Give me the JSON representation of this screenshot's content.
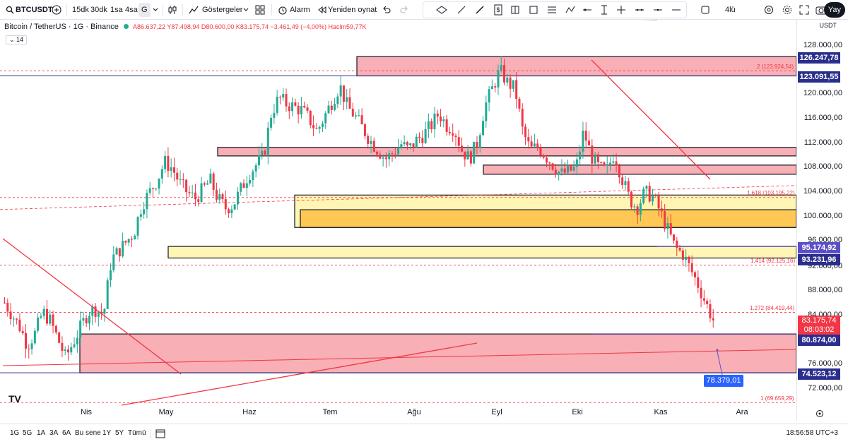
{
  "toolbar": {
    "symbol": "BTCUSDT",
    "intervals": [
      "15dk",
      "30dk",
      "1sa",
      "4sa",
      "G"
    ],
    "indicators_label": "Göstergeler",
    "alert_label": "Alarm",
    "replay_label": "Yeniden oynat",
    "layout_label": "4lü",
    "share_label": "Yay"
  },
  "legend": {
    "title": "Bitcoin / TetherUS · 1G · Binance",
    "ohlc": "A86.637,22 Y87.498,94 D80.600,00 K83.175,74 −3.461,49 (−4,00%) Hacim59,77K",
    "indicator_count": "14"
  },
  "price_axis": {
    "currency": "USDT",
    "ticks": [
      "128.000,00",
      "124.000,00",
      "120.000,00",
      "116.000,00",
      "112.000,00",
      "108.000,00",
      "104.000,00",
      "100.000,00",
      "96.000,00",
      "92.000,00",
      "88.000,00",
      "84.000,00",
      "76.000,00",
      "72.000,00"
    ],
    "labels": {
      "l1": "126.247,78",
      "l2": "123.091,55",
      "l3": "95.174,92",
      "l4": "93.231,96",
      "l5": "80.874,00",
      "l6": "74.523,12"
    },
    "current_price": "83.175,74",
    "countdown": "08:03:02"
  },
  "fib_labels": {
    "f1": "2 (123.924,54)",
    "f2": "1.618 (103.195,22)",
    "f3": "1.414 (92.125,16)",
    "f4": "1.272 (84.419,44)",
    "f5": "1 (69.659,29)"
  },
  "measure_label": "78.379,01",
  "time_axis": {
    "months": [
      "Nis",
      "May",
      "Haz",
      "Tem",
      "Ağu",
      "Eyl",
      "Eki",
      "Kas",
      "Ara"
    ]
  },
  "bottom_bar": {
    "ranges": [
      "1G",
      "5G",
      "1A",
      "3A",
      "6A",
      "Bu sene",
      "1Y",
      "5Y",
      "Tümü"
    ],
    "clock": "18:56:58 UTC+3"
  },
  "colors": {
    "up": "#22ab94",
    "down": "#f23645",
    "zone_red": "#f7a1a8",
    "zone_yellow": "#fff3a8",
    "zone_orange": "#ffc043",
    "label_blue": "#2a2e8c"
  },
  "chart_data": {
    "type": "candlestick",
    "series_points": [
      [
        0,
        86000
      ],
      [
        5,
        84000
      ],
      [
        10,
        82000
      ],
      [
        15,
        79000
      ],
      [
        20,
        81000
      ],
      [
        25,
        84500
      ],
      [
        30,
        83000
      ],
      [
        35,
        80000
      ],
      [
        40,
        77000
      ],
      [
        45,
        79500
      ],
      [
        50,
        82000
      ],
      [
        55,
        84500
      ],
      [
        60,
        85000
      ],
      [
        65,
        84000
      ],
      [
        70,
        93000
      ],
      [
        75,
        94500
      ],
      [
        80,
        96000
      ],
      [
        85,
        97500
      ],
      [
        90,
        102000
      ],
      [
        95,
        104000
      ],
      [
        100,
        106000
      ],
      [
        105,
        109000
      ],
      [
        110,
        108000
      ],
      [
        115,
        105500
      ],
      [
        120,
        104000
      ],
      [
        125,
        103000
      ],
      [
        130,
        104500
      ],
      [
        135,
        106000
      ],
      [
        140,
        103000
      ],
      [
        145,
        101500
      ],
      [
        150,
        102000
      ],
      [
        155,
        104500
      ],
      [
        160,
        107000
      ],
      [
        165,
        108500
      ],
      [
        170,
        110000
      ],
      [
        175,
        117000
      ],
      [
        180,
        119500
      ],
      [
        185,
        118500
      ],
      [
        190,
        118000
      ],
      [
        195,
        117500
      ],
      [
        200,
        116000
      ],
      [
        205,
        114000
      ],
      [
        210,
        116500
      ],
      [
        215,
        119000
      ],
      [
        220,
        121500
      ],
      [
        225,
        118000
      ],
      [
        230,
        116500
      ],
      [
        235,
        114500
      ],
      [
        240,
        112500
      ],
      [
        245,
        111000
      ],
      [
        250,
        109500
      ],
      [
        255,
        110500
      ],
      [
        260,
        112000
      ],
      [
        265,
        111000
      ],
      [
        270,
        112500
      ],
      [
        275,
        113500
      ],
      [
        280,
        115000
      ],
      [
        285,
        117000
      ],
      [
        290,
        115000
      ],
      [
        295,
        114500
      ],
      [
        300,
        111000
      ],
      [
        305,
        109500
      ],
      [
        310,
        112000
      ],
      [
        315,
        118000
      ],
      [
        320,
        121000
      ],
      [
        325,
        124000
      ],
      [
        330,
        122000
      ],
      [
        335,
        121000
      ],
      [
        340,
        114000
      ],
      [
        345,
        111000
      ],
      [
        350,
        111500
      ],
      [
        355,
        110000
      ],
      [
        360,
        108500
      ],
      [
        365,
        107000
      ],
      [
        370,
        107500
      ],
      [
        375,
        108000
      ],
      [
        380,
        114000
      ],
      [
        385,
        110000
      ],
      [
        390,
        108000
      ],
      [
        395,
        107500
      ],
      [
        400,
        110500
      ],
      [
        405,
        106500
      ],
      [
        410,
        103000
      ],
      [
        415,
        101500
      ],
      [
        420,
        104000
      ],
      [
        425,
        103500
      ],
      [
        430,
        101000
      ],
      [
        435,
        98000
      ],
      [
        440,
        95000
      ],
      [
        445,
        94000
      ],
      [
        450,
        91500
      ],
      [
        455,
        89000
      ],
      [
        460,
        86000
      ],
      [
        465,
        83175
      ]
    ]
  }
}
